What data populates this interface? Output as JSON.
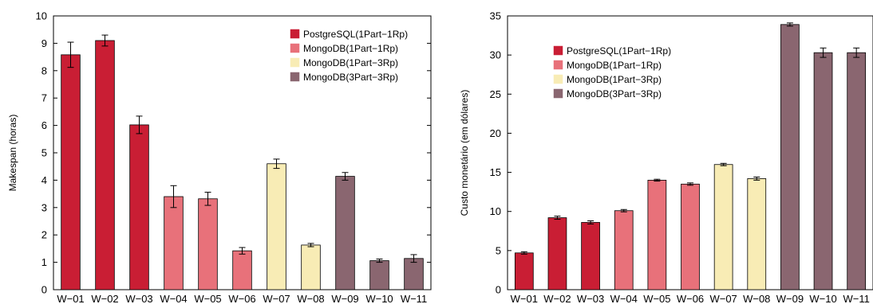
{
  "chart_data": [
    {
      "type": "bar",
      "xlabel": "",
      "ylabel": "Makespan (horas)",
      "ylim": [
        0,
        10
      ],
      "yticks": [
        0,
        1,
        2,
        3,
        4,
        5,
        6,
        7,
        8,
        9,
        10
      ],
      "grid": false,
      "legend_position": "top-right",
      "categories": [
        "W−01",
        "W−02",
        "W−03",
        "W−04",
        "W−05",
        "W−06",
        "W−07",
        "W−08",
        "W−09",
        "W−10",
        "W−11"
      ],
      "values": [
        8.58,
        9.1,
        6.02,
        3.4,
        3.32,
        1.42,
        4.6,
        1.63,
        4.14,
        1.06,
        1.14
      ],
      "errors": [
        0.46,
        0.2,
        0.32,
        0.4,
        0.24,
        0.12,
        0.17,
        0.06,
        0.14,
        0.06,
        0.14
      ],
      "bar_series": [
        0,
        0,
        0,
        1,
        1,
        1,
        2,
        2,
        3,
        3,
        3
      ],
      "series": [
        {
          "name": "PostgreSQL(1Part−1Rp)",
          "color": "#c91e34"
        },
        {
          "name": "MongoDB(1Part−1Rp)",
          "color": "#e8717a"
        },
        {
          "name": "MongoDB(1Part−3Rp)",
          "color": "#f8ecb5"
        },
        {
          "name": "MongoDB(3Part−3Rp)",
          "color": "#8a6670"
        }
      ]
    },
    {
      "type": "bar",
      "xlabel": "",
      "ylabel": "Custo monetário (em dólares)",
      "ylim": [
        0,
        35
      ],
      "yticks": [
        0,
        5,
        10,
        15,
        20,
        25,
        30,
        35
      ],
      "grid": false,
      "legend_position": "top-left",
      "categories": [
        "W−01",
        "W−02",
        "W−03",
        "W−04",
        "W−05",
        "W−06",
        "W−07",
        "W−08",
        "W−09",
        "W−10",
        "W−11"
      ],
      "values": [
        4.7,
        9.2,
        8.6,
        10.1,
        14.0,
        13.5,
        16.0,
        14.2,
        33.9,
        30.3,
        30.3
      ],
      "errors": [
        0.15,
        0.2,
        0.2,
        0.15,
        0.12,
        0.15,
        0.15,
        0.2,
        0.2,
        0.6,
        0.6
      ],
      "bar_series": [
        0,
        0,
        0,
        1,
        1,
        1,
        2,
        2,
        3,
        3,
        3
      ],
      "series": [
        {
          "name": "PostgreSQL(1Part−1Rp)",
          "color": "#c91e34"
        },
        {
          "name": "MongoDB(1Part−1Rp)",
          "color": "#e8717a"
        },
        {
          "name": "MongoDB(1Part−3Rp)",
          "color": "#f8ecb5"
        },
        {
          "name": "MongoDB(3Part−3Rp)",
          "color": "#8a6670"
        }
      ]
    }
  ]
}
